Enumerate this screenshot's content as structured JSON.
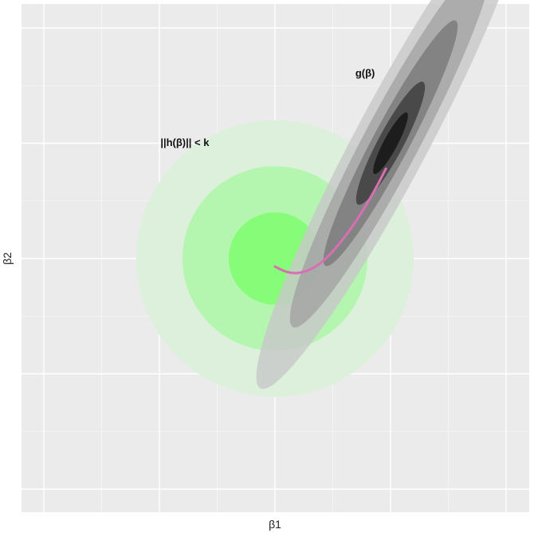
{
  "chart_data": {
    "type": "contour",
    "title": "",
    "xlabel": "β1",
    "ylabel": "β2",
    "xlim": [
      -10,
      10
    ],
    "ylim": [
      -10,
      10
    ],
    "grid": true,
    "x_major_ticks": [
      -10,
      -5,
      0,
      5,
      10
    ],
    "y_major_ticks": [
      -10,
      -5,
      0,
      5,
      10
    ],
    "tick_labels_shown": false,
    "constraint_region": {
      "name": "||h(β)|| < k",
      "center": [
        0,
        0
      ],
      "radii": [
        6,
        4,
        2
      ],
      "colors": [
        "#dcf0dc",
        "#b4f5b0",
        "#86fc78"
      ]
    },
    "objective_contours": {
      "name": "g(β)",
      "center": [
        5,
        5
      ],
      "angle_deg": 62,
      "levels": [
        {
          "semi_major": 12,
          "semi_minor": 1.6,
          "color": "#c8c8c8"
        },
        {
          "semi_major": 9,
          "semi_minor": 1.2,
          "color": "#a3a3a3"
        },
        {
          "semi_major": 6,
          "semi_minor": 0.8,
          "color": "#7a7a7a"
        },
        {
          "semi_major": 3,
          "semi_minor": 0.55,
          "color": "#3c3c3c"
        },
        {
          "semi_major": 1.5,
          "semi_minor": 0.3,
          "color": "#141414"
        }
      ]
    },
    "path": {
      "color": "#d86fb3",
      "points": [
        [
          0,
          -0.35
        ],
        [
          0.5,
          -0.6
        ],
        [
          1.0,
          -0.65
        ],
        [
          1.5,
          -0.5
        ],
        [
          2.0,
          -0.2
        ],
        [
          2.5,
          0.3
        ],
        [
          3.0,
          0.9
        ],
        [
          3.5,
          1.6
        ],
        [
          4.0,
          2.4
        ],
        [
          4.5,
          3.3
        ],
        [
          4.8,
          3.9
        ]
      ]
    },
    "annotations": [
      {
        "text": "||h(β)|| < k",
        "x": -3.9,
        "y": 5.0
      },
      {
        "text": "g(β)",
        "x": 3.9,
        "y": 8.0
      }
    ]
  }
}
